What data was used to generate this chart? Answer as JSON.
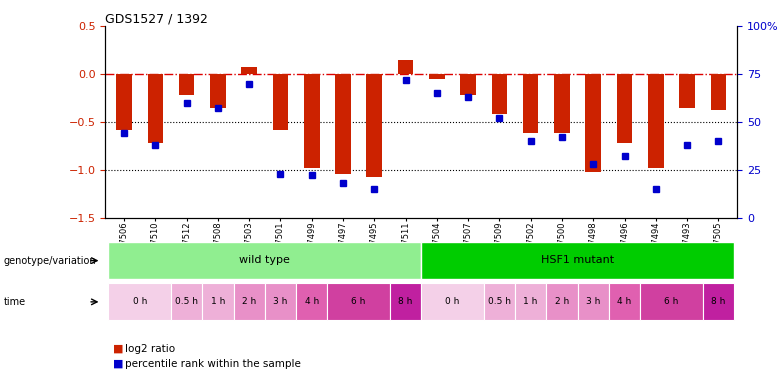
{
  "title": "GDS1527 / 1392",
  "samples": [
    "GSM67506",
    "GSM67510",
    "GSM67512",
    "GSM67508",
    "GSM67503",
    "GSM67501",
    "GSM67499",
    "GSM67497",
    "GSM67495",
    "GSM67511",
    "GSM67504",
    "GSM67507",
    "GSM67509",
    "GSM67502",
    "GSM67500",
    "GSM67498",
    "GSM67496",
    "GSM67494",
    "GSM67493",
    "GSM67505"
  ],
  "log2_ratio": [
    -0.58,
    -0.72,
    -0.22,
    -0.35,
    0.07,
    -0.58,
    -0.98,
    -1.05,
    -1.08,
    0.15,
    -0.05,
    -0.22,
    -0.42,
    -0.62,
    -0.62,
    -1.02,
    -0.72,
    -0.98,
    -0.35,
    -0.38
  ],
  "percentile": [
    44,
    38,
    60,
    57,
    70,
    23,
    22,
    18,
    15,
    72,
    65,
    63,
    52,
    40,
    42,
    28,
    32,
    15,
    38,
    40
  ],
  "genotype_groups": [
    {
      "label": "wild type",
      "start": 0,
      "end": 10,
      "color": "#90EE90"
    },
    {
      "label": "HSF1 mutant",
      "start": 10,
      "end": 20,
      "color": "#00CC00"
    }
  ],
  "time_segs": [
    {
      "label": "0 h",
      "samples": [
        0,
        1
      ],
      "color": "#F4D0E8"
    },
    {
      "label": "0.5 h",
      "samples": [
        2
      ],
      "color": "#EEB0D8"
    },
    {
      "label": "1 h",
      "samples": [
        3
      ],
      "color": "#EEB0D8"
    },
    {
      "label": "2 h",
      "samples": [
        4
      ],
      "color": "#E890C8"
    },
    {
      "label": "3 h",
      "samples": [
        5
      ],
      "color": "#E890C8"
    },
    {
      "label": "4 h",
      "samples": [
        6
      ],
      "color": "#E060B0"
    },
    {
      "label": "6 h",
      "samples": [
        7,
        8
      ],
      "color": "#D040A0"
    },
    {
      "label": "8 h",
      "samples": [
        9
      ],
      "color": "#C020A0"
    },
    {
      "label": "0 h",
      "samples": [
        10,
        11
      ],
      "color": "#F4D0E8"
    },
    {
      "label": "0.5 h",
      "samples": [
        12
      ],
      "color": "#EEB0D8"
    },
    {
      "label": "1 h",
      "samples": [
        13
      ],
      "color": "#EEB0D8"
    },
    {
      "label": "2 h",
      "samples": [
        14
      ],
      "color": "#E890C8"
    },
    {
      "label": "3 h",
      "samples": [
        15
      ],
      "color": "#E890C8"
    },
    {
      "label": "4 h",
      "samples": [
        16
      ],
      "color": "#E060B0"
    },
    {
      "label": "6 h",
      "samples": [
        17,
        18
      ],
      "color": "#D040A0"
    },
    {
      "label": "8 h",
      "samples": [
        19
      ],
      "color": "#C020A0"
    }
  ],
  "bar_color": "#CC2200",
  "dot_color": "#0000CC",
  "ylim_left": [
    -1.5,
    0.5
  ],
  "ylim_right": [
    0,
    100
  ],
  "yticks_left": [
    0.5,
    0,
    -0.5,
    -1.0,
    -1.5
  ],
  "yticks_right": [
    100,
    75,
    50,
    25,
    0
  ],
  "zero_line_color": "#DD0000",
  "bar_width": 0.5
}
